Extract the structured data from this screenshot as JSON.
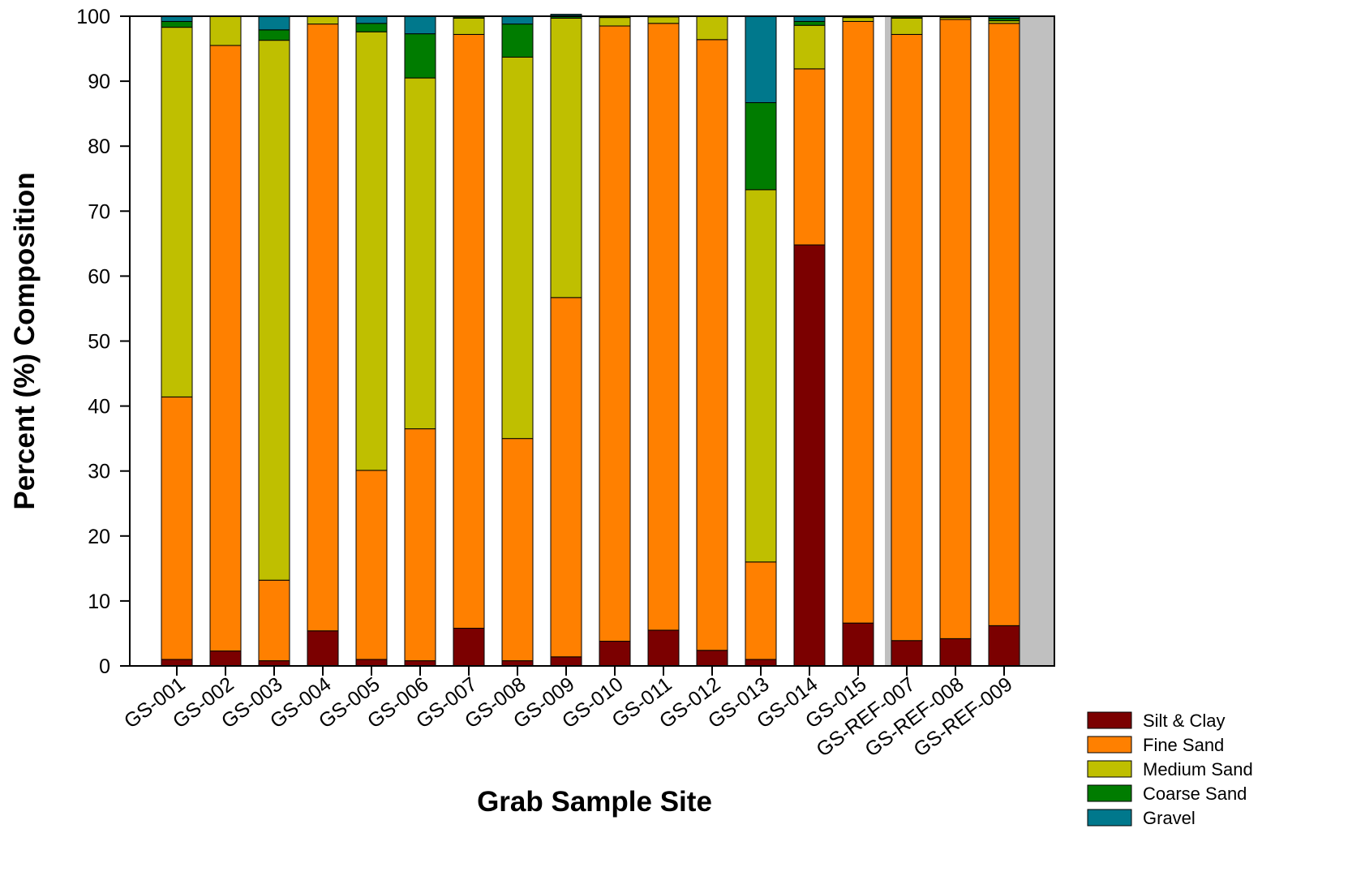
{
  "chart_data": {
    "type": "bar",
    "stacked": true,
    "xlabel": "Grab Sample Site",
    "ylabel": "Percent (%) Composition",
    "ylim": [
      0,
      100
    ],
    "yticks": [
      0,
      10,
      20,
      30,
      40,
      50,
      60,
      70,
      80,
      90,
      100
    ],
    "grid": false,
    "legend_position": "bottom-right",
    "shaded_categories": [
      "GS-REF-007",
      "GS-REF-008",
      "GS-REF-009"
    ],
    "shade_color": "#c0c0c0",
    "categories": [
      "GS-001",
      "GS-002",
      "GS-003",
      "GS-004",
      "GS-005",
      "GS-006",
      "GS-007",
      "GS-008",
      "GS-009",
      "GS-010",
      "GS-011",
      "GS-012",
      "GS-013",
      "GS-014",
      "GS-015",
      "GS-REF-007",
      "GS-REF-008",
      "GS-REF-009"
    ],
    "series": [
      {
        "name": "Silt & Clay",
        "color": "#7b0000",
        "values": [
          1.0,
          2.3,
          0.8,
          5.4,
          1.0,
          0.8,
          5.8,
          0.8,
          1.4,
          3.8,
          5.5,
          2.4,
          1.0,
          64.8,
          6.6,
          3.9,
          4.2,
          6.2
        ]
      },
      {
        "name": "Fine Sand",
        "color": "#ff8000",
        "values": [
          40.4,
          93.2,
          12.4,
          93.4,
          29.1,
          35.7,
          91.4,
          34.2,
          55.3,
          94.7,
          93.4,
          94.0,
          15.0,
          27.1,
          92.6,
          93.3,
          95.3,
          92.7
        ]
      },
      {
        "name": "Medium Sand",
        "color": "#bfbf00",
        "values": [
          56.9,
          4.5,
          83.1,
          1.2,
          67.5,
          54.0,
          2.5,
          58.7,
          43.0,
          1.3,
          1.0,
          3.6,
          57.3,
          6.7,
          0.6,
          2.5,
          0.3,
          0.4
        ]
      },
      {
        "name": "Coarse Sand",
        "color": "#007c00",
        "values": [
          0.9,
          0.0,
          1.6,
          0.0,
          1.3,
          6.8,
          0.2,
          5.1,
          0.4,
          0.1,
          0.0,
          0.0,
          13.4,
          0.6,
          0.1,
          0.2,
          0.1,
          0.4
        ]
      },
      {
        "name": "Gravel",
        "color": "#00788c",
        "values": [
          0.8,
          0.0,
          2.1,
          0.0,
          1.1,
          2.7,
          0.1,
          1.2,
          0.2,
          0.1,
          0.1,
          0.0,
          13.3,
          0.8,
          0.1,
          0.1,
          0.1,
          0.3
        ]
      }
    ]
  }
}
